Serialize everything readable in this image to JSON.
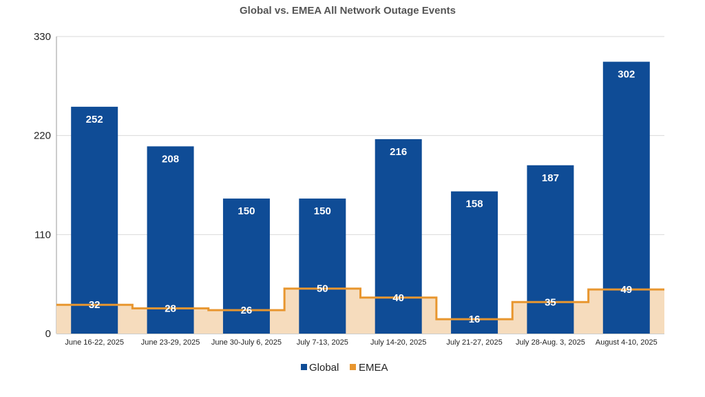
{
  "chart_data": {
    "type": "bar",
    "title": "Global vs. EMEA All Network Outage Events",
    "categories": [
      "June 16-22, 2025",
      "June 23-29, 2025",
      "June 30-July 6, 2025",
      "July 7-13, 2025",
      "July 14-20, 2025",
      "July 21-27, 2025",
      "July 28-Aug. 3, 2025",
      "August 4-10, 2025"
    ],
    "series": [
      {
        "name": "Global",
        "type": "bar",
        "color": "#0f4c96",
        "values": [
          252,
          208,
          150,
          150,
          216,
          158,
          187,
          302
        ]
      },
      {
        "name": "EMEA",
        "type": "stepped-area",
        "color": "#e8962f",
        "fill": "#f6dcbd",
        "values": [
          32,
          28,
          26,
          50,
          40,
          16,
          35,
          49
        ]
      }
    ],
    "yticks": [
      "0",
      "110",
      "220",
      "330"
    ],
    "ylim": [
      0,
      330
    ],
    "grid": true,
    "legend_position": "bottom"
  }
}
